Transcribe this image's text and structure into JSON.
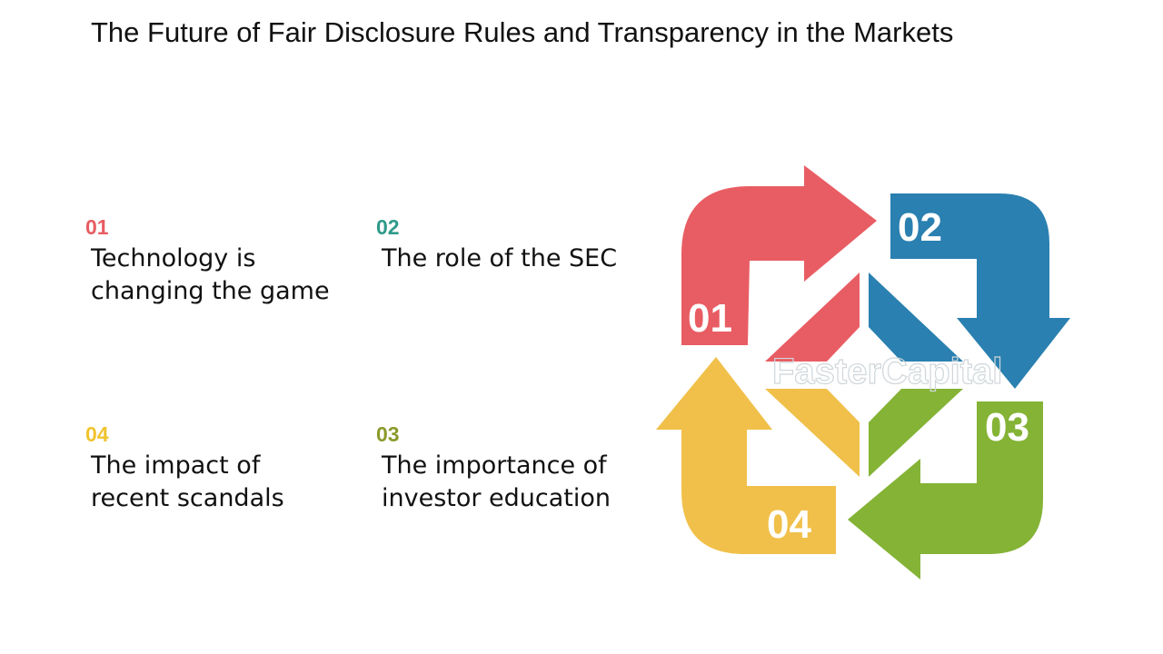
{
  "title": "The Future of Fair Disclosure Rules and Transparency in the Markets",
  "items": [
    {
      "num": "01",
      "text": [
        "Technology is",
        "changing the game"
      ],
      "color": "#e85d63"
    },
    {
      "num": "02",
      "text": [
        "The role of the SEC"
      ],
      "color": "#2f9a8a"
    },
    {
      "num": "03",
      "text": [
        "The importance of",
        "investor education"
      ],
      "color": "#8c9a2c"
    },
    {
      "num": "04",
      "text": [
        "The impact of",
        "recent scandals"
      ],
      "color": "#f0c430"
    }
  ],
  "arrows": [
    {
      "label": "01",
      "color": "#e85d63"
    },
    {
      "label": "02",
      "color": "#2a80b0"
    },
    {
      "label": "03",
      "color": "#84b336"
    },
    {
      "label": "04",
      "color": "#f0c04a"
    }
  ],
  "watermark": "FasterCapital"
}
